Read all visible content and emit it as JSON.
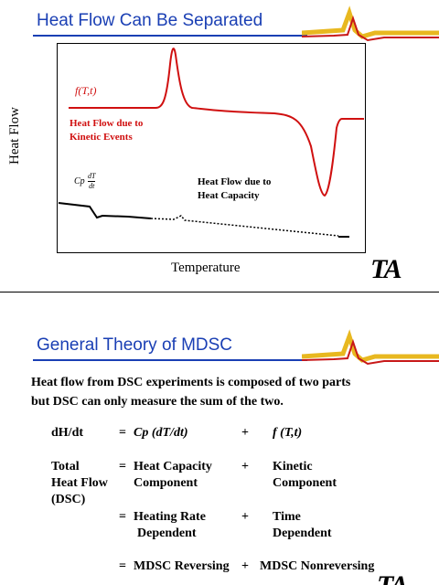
{
  "slide1": {
    "title": "Heat Flow Can Be Separated",
    "y_axis_label": "Heat Flow",
    "x_axis_label": "Temperature",
    "kinetic_function": "f(T,t)",
    "kinetic_label": [
      "Heat Flow due to",
      "Kinetic Events"
    ],
    "cp_symbol": "Cp",
    "cp_fraction": {
      "num": "dT",
      "den": "dt"
    },
    "capacity_label": [
      "Heat Flow due to",
      "Heat Capacity"
    ],
    "logo": "TA",
    "colors": {
      "title": "#1a3fb4",
      "kinetic": "#d01010"
    }
  },
  "slide2": {
    "title": "General Theory of MDSC",
    "intro": [
      "Heat flow from DSC experiments is composed of two parts",
      "but DSC can only measure the sum of the two."
    ],
    "equation": {
      "lhs": "dH/dt",
      "eq": "=",
      "term1": "Cp (dT/dt)",
      "plus": "+",
      "term2": "f (T,t)"
    },
    "row2": {
      "lhs": [
        "Total",
        "Heat Flow",
        "(DSC)"
      ],
      "eq": "=",
      "term1": [
        "Heat Capacity",
        "Component"
      ],
      "plus": "+",
      "term2": [
        "Kinetic",
        "Component"
      ]
    },
    "row3": {
      "eq": "=",
      "term1": [
        "Heating Rate",
        "Dependent"
      ],
      "plus": "+",
      "term2": [
        "Time",
        "Dependent"
      ]
    },
    "row4": {
      "eq": "=",
      "term1": "MDSC Reversing",
      "plus": "+",
      "term2": "MDSC Nonreversing"
    },
    "logo": "TA"
  }
}
